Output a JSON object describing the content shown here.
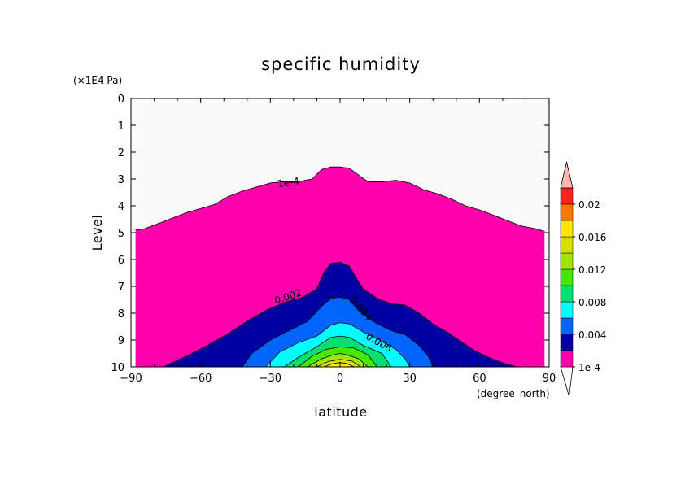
{
  "chart_data": {
    "type": "contour",
    "title": "specific humidity",
    "xlabel": "latitude",
    "ylabel": "Level",
    "x_units": "(degree_north)",
    "y_units": "(×1E4 Pa)",
    "xlim": [
      -90,
      90
    ],
    "ylim": [
      0,
      10
    ],
    "y_reversed": true,
    "x_ticks": [
      -90,
      -60,
      -30,
      0,
      30,
      60,
      90
    ],
    "x_tick_labels": [
      "−90",
      "−60",
      "−30",
      "0",
      "30",
      "60",
      "90"
    ],
    "y_ticks": [
      0,
      1,
      2,
      3,
      4,
      5,
      6,
      7,
      8,
      9,
      10
    ],
    "y_tick_labels": [
      "0",
      "1",
      "2",
      "3",
      "4",
      "5",
      "6",
      "7",
      "8",
      "9",
      "10"
    ],
    "background_color": "#fafafa",
    "contour_levels": [
      {
        "value": "1e-4",
        "color": "#ff00aa",
        "boundary": [
          [
            -88,
            4.9
          ],
          [
            -84,
            4.85
          ],
          [
            -78,
            4.65
          ],
          [
            -72,
            4.45
          ],
          [
            -66,
            4.25
          ],
          [
            -60,
            4.1
          ],
          [
            -54,
            3.95
          ],
          [
            -48,
            3.65
          ],
          [
            -42,
            3.45
          ],
          [
            -36,
            3.3
          ],
          [
            -30,
            3.15
          ],
          [
            -24,
            3.1
          ],
          [
            -18,
            3.1
          ],
          [
            -12,
            3.0
          ],
          [
            -8,
            2.65
          ],
          [
            -4,
            2.55
          ],
          [
            0,
            2.55
          ],
          [
            4,
            2.6
          ],
          [
            8,
            2.85
          ],
          [
            12,
            3.1
          ],
          [
            18,
            3.1
          ],
          [
            24,
            3.05
          ],
          [
            30,
            3.15
          ],
          [
            36,
            3.4
          ],
          [
            42,
            3.55
          ],
          [
            48,
            3.75
          ],
          [
            54,
            4.0
          ],
          [
            60,
            4.15
          ],
          [
            66,
            4.35
          ],
          [
            72,
            4.55
          ],
          [
            78,
            4.75
          ],
          [
            84,
            4.85
          ],
          [
            88,
            4.95
          ]
        ]
      },
      {
        "value": "0.002",
        "color": "#0000a0",
        "boundary": [
          [
            -76,
            10
          ],
          [
            -66,
            9.6
          ],
          [
            -56,
            9.15
          ],
          [
            -48,
            8.75
          ],
          [
            -40,
            8.3
          ],
          [
            -32,
            7.9
          ],
          [
            -24,
            7.6
          ],
          [
            -16,
            7.4
          ],
          [
            -10,
            7.1
          ],
          [
            -7,
            6.5
          ],
          [
            -4,
            6.15
          ],
          [
            0,
            6.1
          ],
          [
            4,
            6.25
          ],
          [
            7,
            6.7
          ],
          [
            10,
            7.1
          ],
          [
            16,
            7.45
          ],
          [
            22,
            7.65
          ],
          [
            28,
            7.7
          ],
          [
            34,
            8.0
          ],
          [
            40,
            8.4
          ],
          [
            46,
            8.7
          ],
          [
            52,
            9.05
          ],
          [
            58,
            9.4
          ],
          [
            64,
            9.65
          ],
          [
            70,
            9.85
          ],
          [
            76,
            10
          ]
        ]
      },
      {
        "value": "0.004",
        "color": "#0064ff",
        "boundary": [
          [
            -42,
            10
          ],
          [
            -38,
            9.5
          ],
          [
            -30,
            9.0
          ],
          [
            -22,
            8.65
          ],
          [
            -14,
            8.3
          ],
          [
            -8,
            7.75
          ],
          [
            -4,
            7.45
          ],
          [
            0,
            7.4
          ],
          [
            4,
            7.5
          ],
          [
            8,
            7.9
          ],
          [
            14,
            8.3
          ],
          [
            22,
            8.65
          ],
          [
            28,
            8.8
          ],
          [
            34,
            9.2
          ],
          [
            38,
            9.6
          ],
          [
            40,
            10
          ]
        ]
      },
      {
        "value": "0.006",
        "color": "#00ffff",
        "boundary": [
          [
            -32,
            10
          ],
          [
            -26,
            9.45
          ],
          [
            -18,
            9.1
          ],
          [
            -10,
            8.85
          ],
          [
            -4,
            8.45
          ],
          [
            0,
            8.35
          ],
          [
            4,
            8.4
          ],
          [
            10,
            8.7
          ],
          [
            18,
            9.05
          ],
          [
            24,
            9.35
          ],
          [
            28,
            9.7
          ],
          [
            30,
            10
          ]
        ]
      },
      {
        "value": "0.008",
        "color": "#00e070",
        "boundary": [
          [
            -24,
            10
          ],
          [
            -18,
            9.65
          ],
          [
            -10,
            9.25
          ],
          [
            -4,
            8.9
          ],
          [
            0,
            8.85
          ],
          [
            4,
            8.9
          ],
          [
            10,
            9.2
          ],
          [
            18,
            9.5
          ],
          [
            22,
            10
          ]
        ]
      },
      {
        "value": "0.010",
        "color": "#44e800",
        "boundary": [
          [
            -18,
            10
          ],
          [
            -12,
            9.6
          ],
          [
            -6,
            9.35
          ],
          [
            0,
            9.25
          ],
          [
            6,
            9.3
          ],
          [
            12,
            9.55
          ],
          [
            16,
            10
          ]
        ]
      },
      {
        "value": "0.012",
        "color": "#a0e600",
        "boundary": [
          [
            -14,
            10
          ],
          [
            -8,
            9.7
          ],
          [
            -3,
            9.55
          ],
          [
            0,
            9.5
          ],
          [
            3,
            9.55
          ],
          [
            8,
            9.7
          ],
          [
            12,
            10
          ]
        ]
      },
      {
        "value": "0.014",
        "color": "#d8e000",
        "boundary": [
          [
            -10,
            10
          ],
          [
            -5,
            9.8
          ],
          [
            0,
            9.72
          ],
          [
            5,
            9.78
          ],
          [
            9,
            10
          ]
        ]
      },
      {
        "value": "0.016",
        "color": "#ffe800",
        "boundary": [
          [
            -7,
            10
          ],
          [
            -3,
            9.88
          ],
          [
            0,
            9.84
          ],
          [
            3,
            9.88
          ],
          [
            6,
            10
          ]
        ]
      }
    ],
    "contour_labels": [
      {
        "text": "1e-4",
        "x": -22,
        "y": 3.25,
        "angle": -8
      },
      {
        "text": "0.002",
        "x": -22,
        "y": 7.5,
        "angle": -18
      },
      {
        "text": "0.004",
        "x": 8,
        "y": 7.9,
        "angle": 50
      },
      {
        "text": "0.006",
        "x": 16,
        "y": 9.2,
        "angle": 30
      }
    ],
    "colorbar": {
      "colors": [
        "#ff00aa",
        "#0000a0",
        "#0064ff",
        "#00ffff",
        "#00e070",
        "#44e800",
        "#a0e600",
        "#d8e000",
        "#ffe800",
        "#ff7700",
        "#ff2020",
        "#ff5a5a",
        "#ffb4b4"
      ],
      "tick_labels": [
        "1e-4",
        "0.004",
        "0.008",
        "0.012",
        "0.016",
        "0.02"
      ],
      "extend": "both"
    }
  }
}
